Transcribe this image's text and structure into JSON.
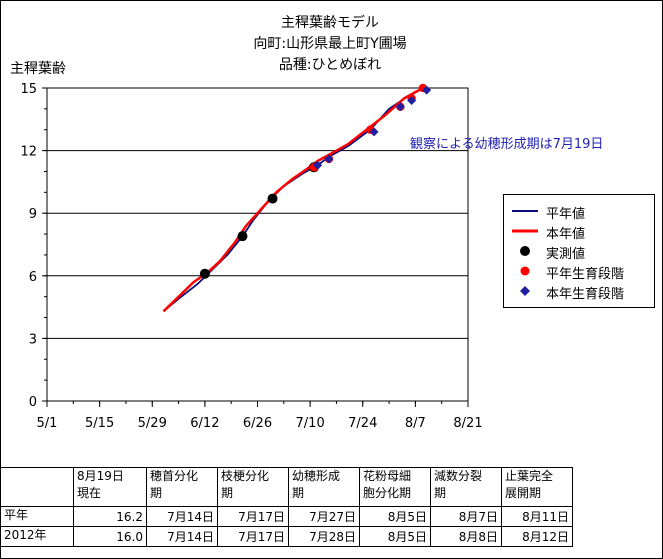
{
  "title": [
    "主稈葉齢モデル",
    "向町:山形県最上町Y圃場",
    "品種:ひとめぼれ"
  ],
  "annotation": "観察による幼穂形成期は7月19日",
  "chart_data": {
    "type": "line",
    "ylabel": "主稈葉齢",
    "ylim": [
      0,
      15
    ],
    "yticks": [
      "0",
      "3",
      "6",
      "9",
      "12",
      "15"
    ],
    "xticks": [
      "5/1",
      "5/15",
      "5/29",
      "6/12",
      "6/26",
      "7/10",
      "7/24",
      "8/7",
      "8/21"
    ],
    "x_domain_days": [
      0,
      112
    ],
    "grid": "horizontal",
    "legend_position": "right",
    "series": [
      {
        "name": "平年値",
        "kind": "line",
        "color": "#0a0a78",
        "x": [
          31,
          35,
          40,
          44,
          48,
          52,
          55,
          59,
          63,
          68,
          72,
          75,
          80,
          86,
          91,
          96,
          100
        ],
        "y": [
          4.3,
          4.9,
          5.6,
          6.3,
          7.0,
          7.9,
          8.7,
          9.6,
          10.3,
          10.9,
          11.3,
          11.7,
          12.2,
          13.0,
          14.0,
          14.6,
          15.0
        ]
      },
      {
        "name": "本年値",
        "kind": "line",
        "color": "#ff0000",
        "x": [
          31,
          35,
          39,
          43,
          46,
          50,
          53,
          57,
          61,
          65,
          69,
          72,
          76,
          80,
          85,
          90,
          95,
          100
        ],
        "y": [
          4.3,
          5.0,
          5.7,
          6.2,
          6.7,
          7.6,
          8.4,
          9.2,
          10.0,
          10.6,
          11.1,
          11.5,
          11.9,
          12.3,
          13.0,
          13.7,
          14.5,
          15.0
        ]
      },
      {
        "name": "実測値",
        "kind": "point",
        "color": "#000000",
        "marker": "circle",
        "x": [
          42,
          52,
          60,
          71
        ],
        "y": [
          6.1,
          7.9,
          9.7,
          11.2
        ]
      },
      {
        "name": "平年生育段階",
        "kind": "point",
        "color": "#ff0000",
        "marker": "circle",
        "x": [
          71,
          75,
          86,
          94,
          97,
          100
        ],
        "y": [
          11.2,
          11.6,
          13.0,
          14.1,
          14.5,
          15.0
        ]
      },
      {
        "name": "本年生育段階",
        "kind": "point",
        "color": "#1f1fa0",
        "marker": "diamond",
        "x": [
          72,
          75,
          87,
          94,
          97,
          101
        ],
        "y": [
          11.3,
          11.6,
          12.9,
          14.1,
          14.4,
          14.9
        ]
      }
    ]
  },
  "table": {
    "header": [
      "",
      "8月19日\n現在",
      "穂首分化\n期",
      "枝梗分化\n期",
      "幼穂形成\n期",
      "花粉母細\n胞分化期",
      "減数分裂\n期",
      "止葉完全\n展開期"
    ],
    "rows": [
      [
        "平年",
        "16.2",
        "7月14日",
        "7月17日",
        "7月27日",
        "8月5日",
        "8月7日",
        "8月11日"
      ],
      [
        "2012年",
        "16.0",
        "7月14日",
        "7月17日",
        "7月28日",
        "8月5日",
        "8月8日",
        "8月12日"
      ]
    ]
  }
}
